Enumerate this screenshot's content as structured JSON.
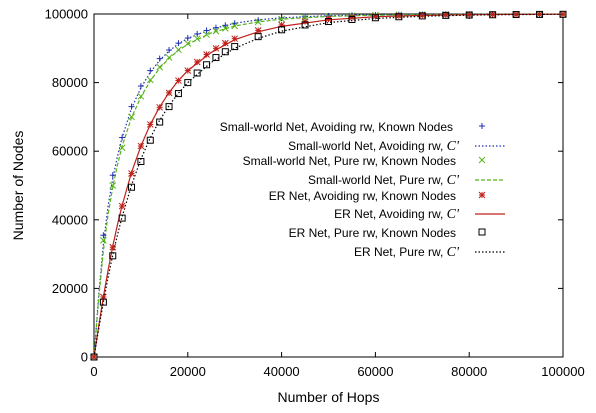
{
  "chart_data": {
    "type": "line",
    "title": "",
    "xlabel": "Number of Hops",
    "ylabel": "Number of Nodes",
    "xlim": [
      0,
      100000
    ],
    "ylim": [
      0,
      100000
    ],
    "xticks": [
      "0",
      "20000",
      "40000",
      "60000",
      "80000",
      "100000"
    ],
    "yticks": [
      "0",
      "20000",
      "40000",
      "60000",
      "80000",
      "100000"
    ],
    "grid": false,
    "legend_position": "right",
    "series": [
      {
        "name": "Small-world Net, Avoiding rw, Known Nodes",
        "style": "markers",
        "marker": "plus",
        "color": "#1f2fb4",
        "x": [
          0,
          2000,
          4000,
          6000,
          8000,
          10000,
          12000,
          14000,
          16000,
          18000,
          20000,
          22000,
          24000,
          26000,
          28000,
          30000,
          35000,
          40000,
          45000,
          50000,
          55000,
          60000,
          65000,
          70000,
          75000,
          80000,
          85000,
          90000,
          95000,
          100000
        ],
        "y": [
          0,
          35500,
          53000,
          64000,
          73000,
          79000,
          83500,
          87000,
          89500,
          91500,
          93000,
          94200,
          95200,
          96000,
          96700,
          97300,
          98200,
          98800,
          99200,
          99400,
          99600,
          99700,
          99800,
          99850,
          99900,
          99920,
          99940,
          99950,
          99960,
          99970
        ]
      },
      {
        "name": "Small-world Net, Avoiding rw, C'",
        "style": "dotted",
        "color": "#1f2fb4",
        "x": [
          0,
          1000,
          2000,
          3000,
          4000,
          5000,
          6000,
          8000,
          10000,
          12000,
          14000,
          16000,
          18000,
          20000,
          25000,
          30000,
          35000,
          40000,
          50000,
          60000,
          70000,
          80000,
          90000,
          100000
        ],
        "y": [
          0,
          18000,
          33000,
          44000,
          52000,
          58500,
          64000,
          72500,
          78500,
          83000,
          86500,
          89200,
          91300,
          92900,
          95600,
          97300,
          98300,
          98900,
          99500,
          99750,
          99870,
          99930,
          99960,
          99980
        ]
      },
      {
        "name": "Small-world Net, Pure rw, Known Nodes",
        "style": "markers",
        "marker": "x",
        "color": "#56b41a",
        "x": [
          0,
          2000,
          4000,
          6000,
          8000,
          10000,
          12000,
          14000,
          16000,
          18000,
          20000,
          22000,
          24000,
          26000,
          28000,
          30000,
          35000,
          40000,
          45000,
          50000,
          55000,
          60000,
          65000,
          70000,
          75000,
          80000,
          85000,
          90000,
          95000,
          100000
        ],
        "y": [
          0,
          34000,
          50000,
          61000,
          70000,
          76000,
          80800,
          84500,
          87300,
          89600,
          91400,
          92800,
          94000,
          95000,
          95800,
          96500,
          97700,
          98500,
          99000,
          99300,
          99500,
          99650,
          99750,
          99820,
          99870,
          99900,
          99930,
          99950,
          99960,
          99970
        ]
      },
      {
        "name": "Small-world Net, Pure rw, C'",
        "style": "dashed",
        "color": "#56b41a",
        "x": [
          0,
          1000,
          2000,
          3000,
          4000,
          5000,
          6000,
          8000,
          10000,
          12000,
          14000,
          16000,
          18000,
          20000,
          25000,
          30000,
          35000,
          40000,
          50000,
          60000,
          70000,
          80000,
          90000,
          100000
        ],
        "y": [
          0,
          17000,
          31000,
          41500,
          49500,
          56000,
          61500,
          69800,
          75800,
          80500,
          84200,
          87100,
          89400,
          91200,
          94500,
          96500,
          97700,
          98500,
          99300,
          99650,
          99820,
          99900,
          99950,
          99970
        ]
      },
      {
        "name": "ER Net, Avoiding rw, Known Nodes",
        "style": "markers",
        "marker": "star",
        "color": "#c0201a",
        "x": [
          0,
          2000,
          4000,
          6000,
          8000,
          10000,
          12000,
          14000,
          16000,
          18000,
          20000,
          22000,
          24000,
          26000,
          28000,
          30000,
          35000,
          40000,
          45000,
          50000,
          55000,
          60000,
          65000,
          70000,
          75000,
          80000,
          85000,
          90000,
          95000,
          100000
        ],
        "y": [
          0,
          17500,
          32000,
          44000,
          53500,
          61500,
          67800,
          72800,
          77000,
          80600,
          83500,
          86000,
          88200,
          90000,
          91500,
          92800,
          95200,
          96800,
          97800,
          98500,
          99000,
          99300,
          99500,
          99650,
          99750,
          99820,
          99870,
          99900,
          99930,
          99950
        ]
      },
      {
        "name": "ER Net, Avoiding rw, C'",
        "style": "solid",
        "color": "#c0201a",
        "x": [
          0,
          1000,
          2000,
          3000,
          4000,
          5000,
          6000,
          8000,
          10000,
          12000,
          14000,
          16000,
          18000,
          20000,
          25000,
          30000,
          35000,
          40000,
          50000,
          60000,
          70000,
          80000,
          90000,
          100000
        ],
        "y": [
          0,
          9000,
          17500,
          25300,
          32300,
          38600,
          44200,
          53800,
          61500,
          67800,
          72900,
          77100,
          80600,
          83500,
          88800,
          92500,
          94800,
          96400,
          98300,
          99200,
          99600,
          99800,
          99900,
          99950
        ]
      },
      {
        "name": "ER Net, Pure rw, Known Nodes",
        "style": "markers",
        "marker": "square",
        "color": "#000000",
        "x": [
          0,
          2000,
          4000,
          6000,
          8000,
          10000,
          12000,
          14000,
          16000,
          18000,
          20000,
          22000,
          24000,
          26000,
          28000,
          30000,
          35000,
          40000,
          45000,
          50000,
          55000,
          60000,
          65000,
          70000,
          75000,
          80000,
          85000,
          90000,
          95000,
          100000
        ],
        "y": [
          0,
          16000,
          29500,
          40500,
          49500,
          57000,
          63200,
          68500,
          73000,
          76800,
          80000,
          82800,
          85200,
          87300,
          89000,
          90500,
          93400,
          95400,
          96800,
          97800,
          98400,
          98900,
          99200,
          99450,
          99600,
          99700,
          99780,
          99840,
          99880,
          99910
        ]
      },
      {
        "name": "ER Net, Pure rw, C'",
        "style": "dotted",
        "color": "#000000",
        "x": [
          0,
          1000,
          2000,
          3000,
          4000,
          5000,
          6000,
          8000,
          10000,
          12000,
          14000,
          16000,
          18000,
          20000,
          25000,
          30000,
          35000,
          40000,
          50000,
          60000,
          70000,
          80000,
          90000,
          100000
        ],
        "y": [
          0,
          8200,
          16000,
          23200,
          29700,
          35600,
          40900,
          50100,
          57700,
          63900,
          69000,
          73300,
          76900,
          80000,
          85900,
          90000,
          92900,
          95000,
          97500,
          98700,
          99350,
          99680,
          99840,
          99920
        ]
      }
    ]
  }
}
